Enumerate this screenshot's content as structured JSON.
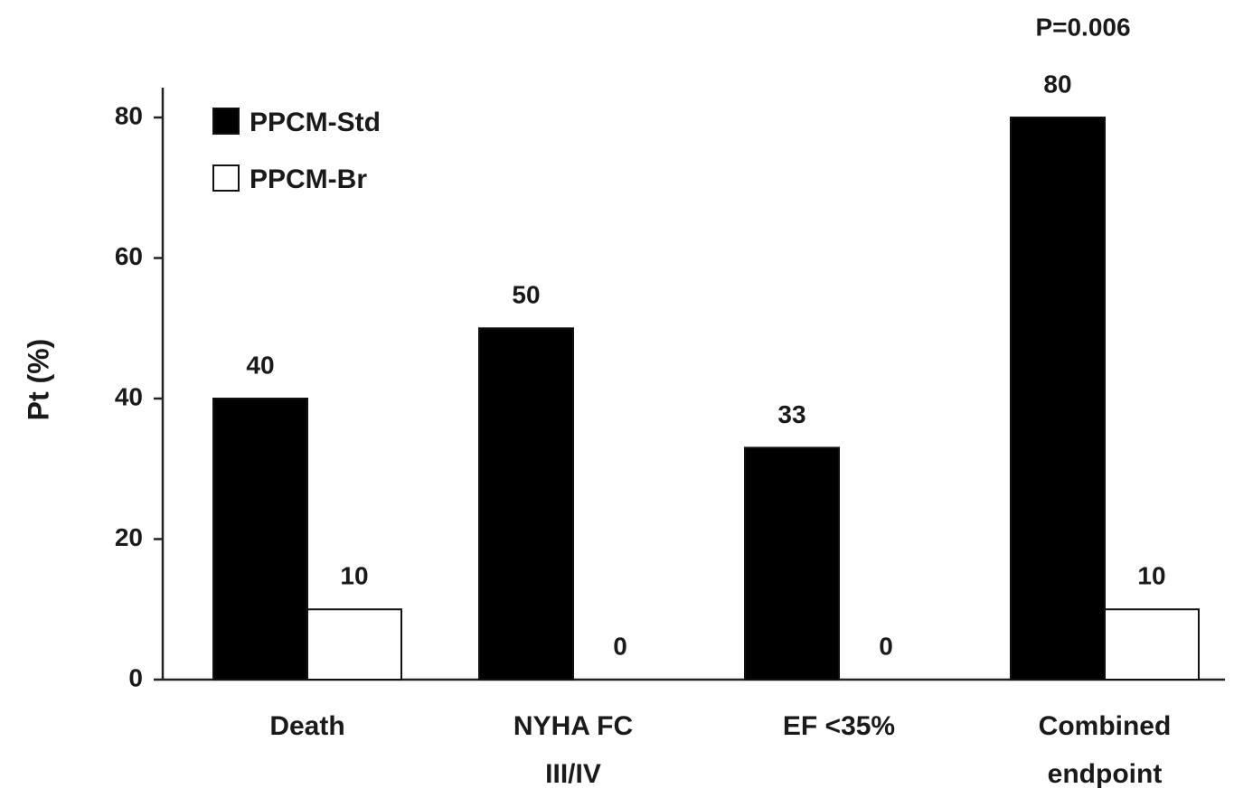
{
  "chart_data": {
    "type": "bar",
    "annotation": "P=0.006",
    "y_label": "Pt (%)",
    "categories": [
      [
        "Death"
      ],
      [
        "NYHA FC",
        "III/IV"
      ],
      [
        "EF <35%"
      ],
      [
        "Combined",
        "endpoint"
      ]
    ],
    "series": [
      {
        "name": "PPCM-Std",
        "color": "#000000",
        "values": [
          40,
          50,
          33,
          80
        ]
      },
      {
        "name": "PPCM-Br",
        "color": "#ffffff",
        "values": [
          10,
          0,
          0,
          10
        ]
      }
    ],
    "ylim": [
      0,
      84
    ],
    "yticks": [
      0,
      20,
      40,
      60,
      80
    ],
    "grid": false,
    "legend": "upper left"
  }
}
